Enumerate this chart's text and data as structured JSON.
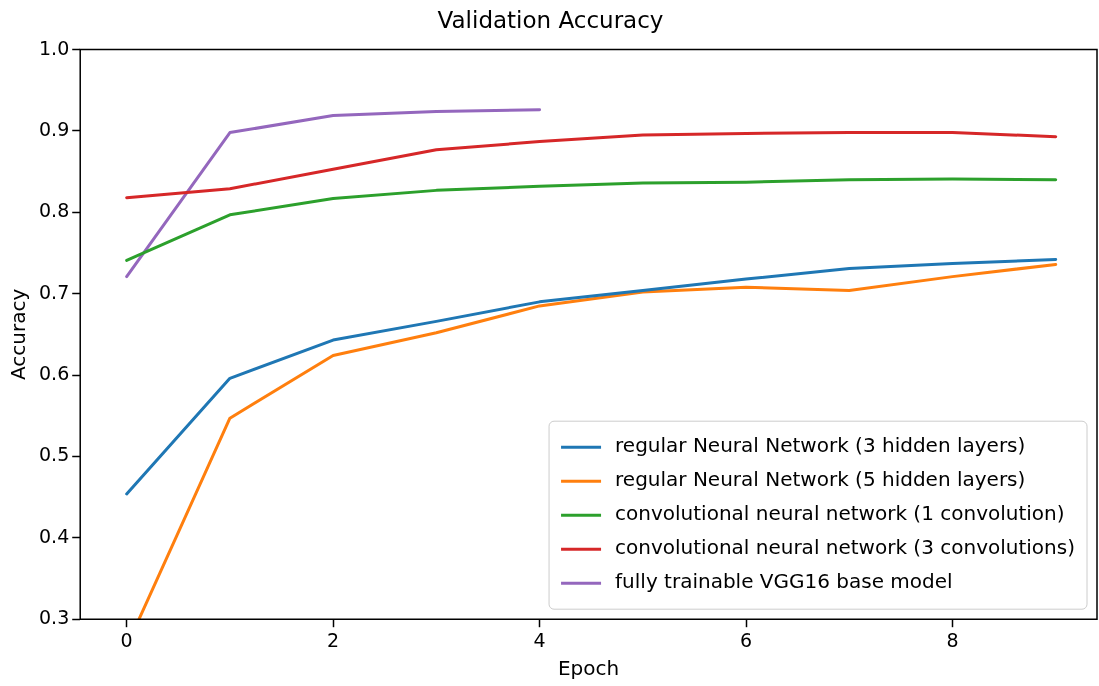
{
  "chart_data": {
    "type": "line",
    "title": "Validation Accuracy",
    "xlabel": "Epoch",
    "ylabel": "Accuracy",
    "x": [
      0,
      1,
      2,
      3,
      4,
      5,
      6,
      7,
      8,
      9
    ],
    "series": [
      {
        "name": "regular Neural Network (3 hidden layers)",
        "color": "#1f77b4",
        "values": [
          0.454,
          0.596,
          0.643,
          0.666,
          0.69,
          0.704,
          0.718,
          0.731,
          0.737,
          0.742
        ]
      },
      {
        "name": "regular Neural Network (5 hidden layers)",
        "color": "#ff7f0e",
        "x": [
          0.12,
          1,
          2,
          3,
          4,
          5,
          6,
          7,
          8,
          9
        ],
        "values": [
          0.3,
          0.547,
          0.624,
          0.652,
          0.685,
          0.702,
          0.708,
          0.704,
          0.721,
          0.736
        ]
      },
      {
        "name": "convolutional neural network (1 convolution)",
        "color": "#2ca02c",
        "values": [
          0.741,
          0.797,
          0.817,
          0.827,
          0.832,
          0.836,
          0.837,
          0.84,
          0.841,
          0.84
        ]
      },
      {
        "name": "convolutional neural network (3 convolutions)",
        "color": "#d62728",
        "values": [
          0.818,
          0.829,
          0.853,
          0.877,
          0.887,
          0.895,
          0.897,
          0.898,
          0.898,
          0.893
        ]
      },
      {
        "name": "fully trainable VGG16 base model",
        "color": "#9467bd",
        "x": [
          0,
          1,
          2,
          3,
          4
        ],
        "values": [
          0.721,
          0.898,
          0.919,
          0.924,
          0.926
        ]
      }
    ],
    "xlim": [
      -0.45,
      9.4
    ],
    "xticks": [
      0,
      2,
      4,
      6,
      8
    ],
    "ylim": [
      0.3,
      1.0
    ],
    "yticks": [
      {
        "value": 0.3,
        "label": "0.3"
      },
      {
        "value": 0.4,
        "label": "0.4"
      },
      {
        "value": 0.5,
        "label": "0.5"
      },
      {
        "value": 0.6,
        "label": "0.6"
      },
      {
        "value": 0.7,
        "label": "0.7"
      },
      {
        "value": 0.8,
        "label": "0.8"
      },
      {
        "value": 0.9,
        "label": "0.9"
      },
      {
        "value": 1.0,
        "label": "1.0"
      }
    ],
    "grid": false,
    "legend": "bottom right",
    "marker": "none",
    "line_style": "solid"
  }
}
